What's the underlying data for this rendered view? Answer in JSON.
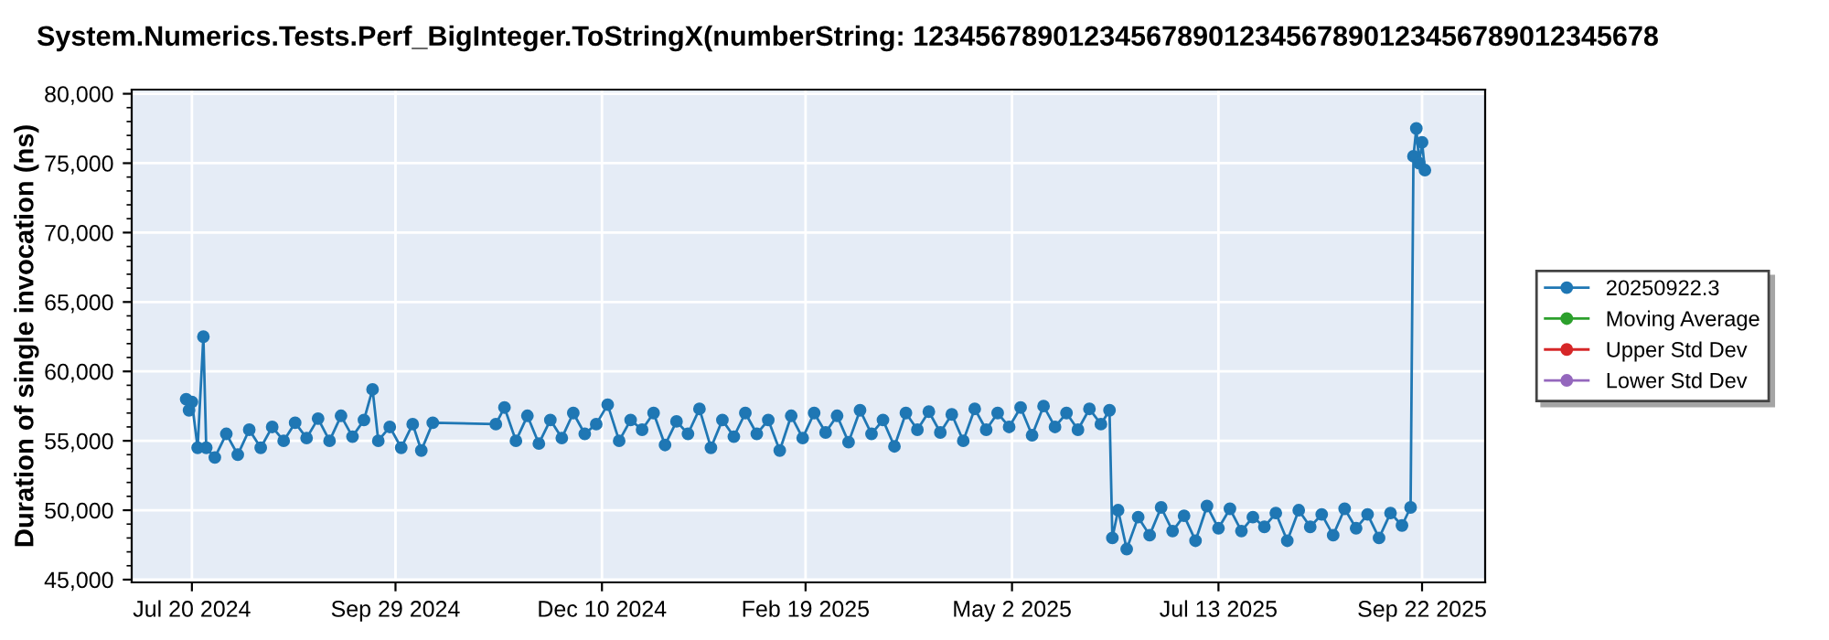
{
  "chart_data": {
    "type": "line",
    "title": "System.Numerics.Tests.Perf_BigInteger.ToStringX(numberString: 123456789012345678901234567890123456789012345678",
    "ylabel": "Duration of single invocation (ns)",
    "x": [
      "2024-07-18",
      "2024-07-19",
      "2024-07-20",
      "2024-07-22",
      "2024-07-24",
      "2024-07-25",
      "2024-07-28",
      "2024-08-01",
      "2024-08-05",
      "2024-08-09",
      "2024-08-13",
      "2024-08-17",
      "2024-08-21",
      "2024-08-25",
      "2024-08-29",
      "2024-09-02",
      "2024-09-06",
      "2024-09-10",
      "2024-09-14",
      "2024-09-18",
      "2024-09-21",
      "2024-09-23",
      "2024-09-27",
      "2024-10-01",
      "2024-10-05",
      "2024-10-08",
      "2024-10-12",
      "2024-11-03",
      "2024-11-06",
      "2024-11-10",
      "2024-11-14",
      "2024-11-18",
      "2024-11-22",
      "2024-11-26",
      "2024-11-30",
      "2024-12-04",
      "2024-12-08",
      "2024-12-12",
      "2024-12-16",
      "2024-12-20",
      "2024-12-24",
      "2024-12-28",
      "2025-01-01",
      "2025-01-05",
      "2025-01-09",
      "2025-01-13",
      "2025-01-17",
      "2025-01-21",
      "2025-01-25",
      "2025-01-29",
      "2025-02-02",
      "2025-02-06",
      "2025-02-10",
      "2025-02-14",
      "2025-02-18",
      "2025-02-22",
      "2025-02-26",
      "2025-03-02",
      "2025-03-06",
      "2025-03-10",
      "2025-03-14",
      "2025-03-18",
      "2025-03-22",
      "2025-03-26",
      "2025-03-30",
      "2025-04-03",
      "2025-04-07",
      "2025-04-11",
      "2025-04-15",
      "2025-04-19",
      "2025-04-23",
      "2025-04-27",
      "2025-05-01",
      "2025-05-05",
      "2025-05-09",
      "2025-05-13",
      "2025-05-17",
      "2025-05-21",
      "2025-05-25",
      "2025-05-29",
      "2025-06-02",
      "2025-06-05",
      "2025-06-06",
      "2025-06-08",
      "2025-06-11",
      "2025-06-15",
      "2025-06-19",
      "2025-06-23",
      "2025-06-27",
      "2025-07-01",
      "2025-07-05",
      "2025-07-09",
      "2025-07-13",
      "2025-07-17",
      "2025-07-21",
      "2025-07-25",
      "2025-07-29",
      "2025-08-02",
      "2025-08-06",
      "2025-08-10",
      "2025-08-14",
      "2025-08-18",
      "2025-08-22",
      "2025-08-26",
      "2025-08-30",
      "2025-09-03",
      "2025-09-07",
      "2025-09-11",
      "2025-09-15",
      "2025-09-18",
      "2025-09-19",
      "2025-09-20",
      "2025-09-21",
      "2025-09-22",
      "2025-09-23"
    ],
    "series": [
      {
        "name": "20250922.3",
        "color": "#1f77b4",
        "values": [
          58000,
          57200,
          57800,
          54500,
          62500,
          54500,
          53800,
          55500,
          54000,
          55800,
          54500,
          56000,
          55000,
          56300,
          55200,
          56600,
          55000,
          56800,
          55300,
          56500,
          58700,
          55000,
          56000,
          54500,
          56200,
          54300,
          56300,
          56200,
          57400,
          55000,
          56800,
          54800,
          56500,
          55200,
          57000,
          55500,
          56200,
          57600,
          55000,
          56500,
          55800,
          57000,
          54700,
          56400,
          55500,
          57300,
          54500,
          56500,
          55300,
          57000,
          55500,
          56500,
          54300,
          56800,
          55200,
          57000,
          55600,
          56800,
          54900,
          57200,
          55500,
          56500,
          54600,
          57000,
          55800,
          57100,
          55600,
          56900,
          55000,
          57300,
          55800,
          57000,
          56000,
          57400,
          55400,
          57500,
          56000,
          57000,
          55800,
          57300,
          56200,
          57200,
          48000,
          50000,
          47200,
          49500,
          48200,
          50200,
          48500,
          49600,
          47800,
          50300,
          48700,
          50100,
          48500,
          49500,
          48800,
          49800,
          47800,
          50000,
          48800,
          49700,
          48200,
          50100,
          48700,
          49700,
          48000,
          49800,
          48900,
          50200,
          75500,
          77500,
          75000,
          76500,
          74500
        ]
      },
      {
        "name": "Moving Average",
        "color": "#2ca02c",
        "values": [
          null,
          null,
          null,
          null,
          null,
          null,
          null,
          null,
          null,
          null,
          null,
          null,
          null,
          null,
          null,
          null,
          null,
          null,
          null,
          null,
          null,
          null,
          null,
          null,
          null,
          null,
          null,
          null,
          null,
          null,
          null,
          null,
          null,
          null,
          null,
          null,
          null,
          null,
          null,
          null,
          null,
          null,
          null,
          null,
          null,
          null,
          null,
          null,
          null,
          null,
          null,
          null,
          null,
          null,
          null,
          null,
          null,
          null,
          null,
          null,
          null,
          null,
          null,
          null,
          null,
          null,
          null,
          null,
          null,
          null,
          null,
          null,
          null,
          null,
          null,
          null,
          null,
          null,
          null,
          null,
          null,
          null,
          null,
          null,
          null,
          null,
          null,
          null,
          null,
          null,
          null,
          null,
          null,
          null,
          null,
          null,
          null,
          null,
          null,
          null,
          null,
          null,
          null,
          null,
          null,
          null,
          null,
          null,
          null,
          null,
          null,
          null,
          null,
          null,
          null
        ]
      },
      {
        "name": "Upper Std Dev",
        "color": "#d62728",
        "values": [
          null,
          null,
          null,
          null,
          null,
          null,
          null,
          null,
          null,
          null,
          null,
          null,
          null,
          null,
          null,
          null,
          null,
          null,
          null,
          null,
          null,
          null,
          null,
          null,
          null,
          null,
          null,
          null,
          null,
          null,
          null,
          null,
          null,
          null,
          null,
          null,
          null,
          null,
          null,
          null,
          null,
          null,
          null,
          null,
          null,
          null,
          null,
          null,
          null,
          null,
          null,
          null,
          null,
          null,
          null,
          null,
          null,
          null,
          null,
          null,
          null,
          null,
          null,
          null,
          null,
          null,
          null,
          null,
          null,
          null,
          null,
          null,
          null,
          null,
          null,
          null,
          null,
          null,
          null,
          null,
          null,
          null,
          null,
          null,
          null,
          null,
          null,
          null,
          null,
          null,
          null,
          null,
          null,
          null,
          null,
          null,
          null,
          null,
          null,
          null,
          null,
          null,
          null,
          null,
          null,
          null,
          null,
          null,
          null,
          null,
          null,
          null,
          null,
          null,
          null
        ]
      },
      {
        "name": "Lower Std Dev",
        "color": "#9467bd",
        "values": [
          null,
          null,
          null,
          null,
          null,
          null,
          null,
          null,
          null,
          null,
          null,
          null,
          null,
          null,
          null,
          null,
          null,
          null,
          null,
          null,
          null,
          null,
          null,
          null,
          null,
          null,
          null,
          null,
          null,
          null,
          null,
          null,
          null,
          null,
          null,
          null,
          null,
          null,
          null,
          null,
          null,
          null,
          null,
          null,
          null,
          null,
          null,
          null,
          null,
          null,
          null,
          null,
          null,
          null,
          null,
          null,
          null,
          null,
          null,
          null,
          null,
          null,
          null,
          null,
          null,
          null,
          null,
          null,
          null,
          null,
          null,
          null,
          null,
          null,
          null,
          null,
          null,
          null,
          null,
          null,
          null,
          null,
          null,
          null,
          null,
          null,
          null,
          null,
          null,
          null,
          null,
          null,
          null,
          null,
          null,
          null,
          null,
          null,
          null,
          null,
          null,
          null,
          null,
          null,
          null,
          null,
          null,
          null,
          null,
          null,
          null,
          null,
          null,
          null,
          null
        ]
      }
    ],
    "xlim": [
      "2024-06-29",
      "2025-10-14"
    ],
    "xticks": [
      {
        "value": "2024-07-20",
        "label": "Jul 20 2024"
      },
      {
        "value": "2024-09-29",
        "label": "Sep 29 2024"
      },
      {
        "value": "2024-12-10",
        "label": "Dec 10 2024"
      },
      {
        "value": "2025-02-19",
        "label": "Feb 19 2025"
      },
      {
        "value": "2025-05-02",
        "label": "May 2 2025"
      },
      {
        "value": "2025-07-13",
        "label": "Jul 13 2025"
      },
      {
        "value": "2025-09-22",
        "label": "Sep 22 2025"
      }
    ],
    "ylim": [
      44800,
      80300
    ],
    "yticks": [
      {
        "value": 45000,
        "label": "45,000"
      },
      {
        "value": 50000,
        "label": "50,000"
      },
      {
        "value": 55000,
        "label": "55,000"
      },
      {
        "value": 60000,
        "label": "60,000"
      },
      {
        "value": 65000,
        "label": "65,000"
      },
      {
        "value": 70000,
        "label": "70,000"
      },
      {
        "value": 75000,
        "label": "75,000"
      },
      {
        "value": 80000,
        "label": "80,000"
      }
    ],
    "grid": true,
    "legend": "right",
    "marker": "circle",
    "line_style": "solid"
  }
}
